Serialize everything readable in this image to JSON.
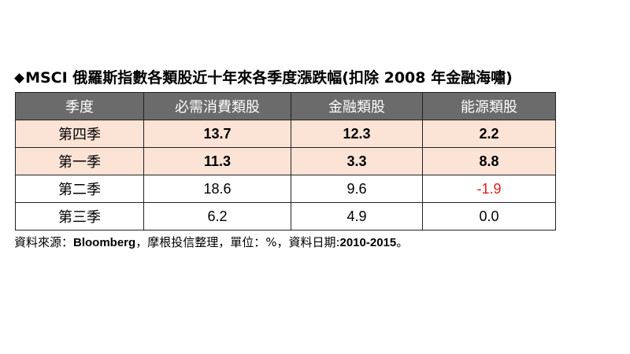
{
  "title": {
    "bullet": "◆",
    "text": "MSCI 俄羅斯指數各類股近十年來各季度漲跌幅(扣除 2008 年金融海嘯)"
  },
  "table": {
    "headers": [
      "季度",
      "必需消費類股",
      "金融類股",
      "能源類股"
    ],
    "rows": [
      {
        "label": "第四季",
        "values": [
          "13.7",
          "12.3",
          "2.2"
        ],
        "highlight": true
      },
      {
        "label": "第一季",
        "values": [
          "11.3",
          "3.3",
          "8.8"
        ],
        "highlight": true
      },
      {
        "label": "第二季",
        "values": [
          "18.6",
          "9.6",
          "-1.9"
        ],
        "highlight": false
      },
      {
        "label": "第三季",
        "values": [
          "6.2",
          "4.9",
          "0.0"
        ],
        "highlight": false
      }
    ],
    "colors": {
      "header_bg": "#6b6b6b",
      "header_text": "#ffffff",
      "highlight_bg": "#fbe3d6",
      "negative_text": "#e02020"
    }
  },
  "source": {
    "prefix": "資料來源：",
    "provider": "Bloomberg",
    "middle": "，摩根投信整理，單位：%，資料日期:",
    "range": "2010-2015",
    "suffix": "。"
  }
}
